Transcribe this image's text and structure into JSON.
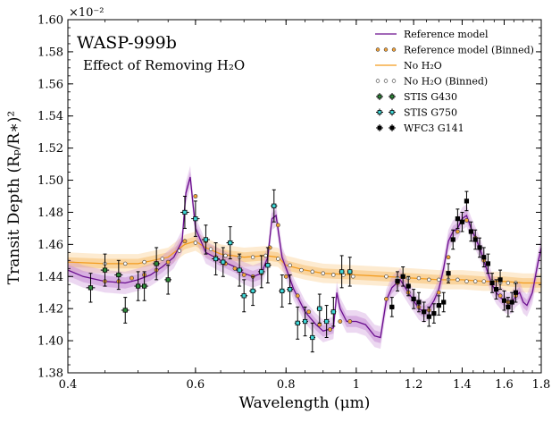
{
  "chart_data": {
    "type": "scatter",
    "title": "WASP-999b",
    "subtitle": "Effect of Removing H₂O",
    "xlabel": "Wavelength (μm)",
    "ylabel": "Transit Depth (Rₚ/R∗)²",
    "y_multiplier": "×10⁻²",
    "x_scale": "log",
    "xlim": [
      0.4,
      1.8
    ],
    "ylim": [
      1.38,
      1.6
    ],
    "x_ticks": [
      0.4,
      0.6,
      0.8,
      1.0,
      1.2,
      1.4,
      1.6,
      1.8
    ],
    "x_tick_labels": [
      "0.4",
      "0.6",
      "0.8",
      "1",
      "1.2",
      "1.4",
      "1.6",
      "1.8"
    ],
    "y_ticks": [
      1.38,
      1.4,
      1.42,
      1.44,
      1.46,
      1.48,
      1.5,
      1.52,
      1.54,
      1.56,
      1.58,
      1.6
    ],
    "y_tick_labels": [
      "1.38",
      "1.40",
      "1.42",
      "1.44",
      "1.46",
      "1.48",
      "1.50",
      "1.52",
      "1.54",
      "1.56",
      "1.58",
      "1.60"
    ],
    "legend_position": "top-right",
    "legend": [
      {
        "label": "Reference model",
        "kind": "line",
        "color": "#6a0f8e"
      },
      {
        "label": "Reference model (Binned)",
        "kind": "dot",
        "color": "#f2a33a"
      },
      {
        "label": "No H₂O",
        "kind": "line",
        "color": "#f39c1f"
      },
      {
        "label": "No H₂O (Binned)",
        "kind": "dot",
        "color": "#ffffff"
      },
      {
        "label": "STIS G430",
        "kind": "errorbar",
        "color": "#2e8b3a"
      },
      {
        "label": "STIS G750",
        "kind": "errorbar",
        "color": "#3fd6d6"
      },
      {
        "label": "WFC3 G141",
        "kind": "errorbar",
        "color": "#000000"
      }
    ],
    "series": [
      {
        "name": "Reference model",
        "color": "#6a0f8e",
        "band_color": "#c98fd6",
        "x": [
          0.4,
          0.42,
          0.45,
          0.48,
          0.5,
          0.52,
          0.54,
          0.56,
          0.575,
          0.582,
          0.59,
          0.6,
          0.62,
          0.65,
          0.68,
          0.7,
          0.72,
          0.74,
          0.755,
          0.765,
          0.775,
          0.79,
          0.82,
          0.85,
          0.88,
          0.9,
          0.93,
          0.94,
          0.95,
          0.97,
          1.0,
          1.03,
          1.06,
          1.08,
          1.1,
          1.12,
          1.15,
          1.18,
          1.2,
          1.22,
          1.24,
          1.26,
          1.28,
          1.3,
          1.32,
          1.34,
          1.36,
          1.38,
          1.4,
          1.42,
          1.44,
          1.46,
          1.48,
          1.5,
          1.52,
          1.54,
          1.56,
          1.58,
          1.6,
          1.62,
          1.64,
          1.66,
          1.68,
          1.7,
          1.72,
          1.75,
          1.78,
          1.8
        ],
        "y": [
          1.444,
          1.44,
          1.437,
          1.436,
          1.438,
          1.441,
          1.446,
          1.452,
          1.462,
          1.492,
          1.502,
          1.47,
          1.455,
          1.45,
          1.446,
          1.442,
          1.44,
          1.442,
          1.452,
          1.476,
          1.478,
          1.452,
          1.432,
          1.418,
          1.41,
          1.406,
          1.408,
          1.43,
          1.42,
          1.412,
          1.412,
          1.41,
          1.403,
          1.402,
          1.425,
          1.433,
          1.438,
          1.43,
          1.425,
          1.42,
          1.418,
          1.42,
          1.425,
          1.432,
          1.445,
          1.462,
          1.468,
          1.47,
          1.476,
          1.478,
          1.47,
          1.464,
          1.458,
          1.45,
          1.442,
          1.435,
          1.43,
          1.427,
          1.425,
          1.423,
          1.424,
          1.428,
          1.43,
          1.424,
          1.422,
          1.43,
          1.448,
          1.458
        ]
      },
      {
        "name": "No H₂O",
        "color": "#f39c1f",
        "band_color": "#f8c57a",
        "x": [
          0.4,
          0.45,
          0.5,
          0.55,
          0.58,
          0.6,
          0.62,
          0.65,
          0.7,
          0.75,
          0.78,
          0.8,
          0.85,
          0.9,
          1.0,
          1.1,
          1.2,
          1.3,
          1.4,
          1.5,
          1.6,
          1.7,
          1.8
        ],
        "y": [
          1.449,
          1.448,
          1.448,
          1.452,
          1.46,
          1.462,
          1.458,
          1.454,
          1.452,
          1.453,
          1.452,
          1.447,
          1.444,
          1.442,
          1.441,
          1.44,
          1.439,
          1.438,
          1.438,
          1.437,
          1.437,
          1.436,
          1.436
        ]
      },
      {
        "name": "Reference model (Binned)",
        "color": "#f2a33a",
        "x": [
          0.45,
          0.47,
          0.49,
          0.51,
          0.53,
          0.55,
          0.58,
          0.6,
          0.62,
          0.64,
          0.66,
          0.68,
          0.7,
          0.72,
          0.74,
          0.76,
          0.78,
          0.8,
          0.83,
          0.86,
          0.89,
          0.92,
          0.95,
          0.98,
          1.1,
          1.14,
          1.18,
          1.22,
          1.26,
          1.3,
          1.34,
          1.38,
          1.42,
          1.46,
          1.5,
          1.54,
          1.58,
          1.62,
          1.66
        ],
        "y": [
          1.437,
          1.437,
          1.439,
          1.441,
          1.444,
          1.449,
          1.462,
          1.49,
          1.462,
          1.452,
          1.448,
          1.445,
          1.441,
          1.44,
          1.442,
          1.458,
          1.472,
          1.44,
          1.428,
          1.418,
          1.41,
          1.407,
          1.412,
          1.412,
          1.426,
          1.436,
          1.43,
          1.421,
          1.419,
          1.43,
          1.452,
          1.468,
          1.475,
          1.464,
          1.45,
          1.436,
          1.428,
          1.424,
          1.428
        ]
      },
      {
        "name": "No H₂O (Binned)",
        "color": "#ffffff",
        "x": [
          0.45,
          0.48,
          0.51,
          0.54,
          0.57,
          0.6,
          0.63,
          0.66,
          0.69,
          0.72,
          0.75,
          0.78,
          0.81,
          0.84,
          0.87,
          0.9,
          0.93,
          0.96,
          0.99,
          1.1,
          1.14,
          1.18,
          1.22,
          1.26,
          1.3,
          1.34,
          1.38,
          1.42,
          1.46,
          1.5,
          1.54,
          1.58,
          1.62,
          1.66
        ],
        "y": [
          1.448,
          1.448,
          1.449,
          1.451,
          1.456,
          1.461,
          1.457,
          1.453,
          1.452,
          1.452,
          1.453,
          1.451,
          1.447,
          1.444,
          1.443,
          1.442,
          1.441,
          1.441,
          1.44,
          1.44,
          1.439,
          1.439,
          1.439,
          1.438,
          1.438,
          1.438,
          1.438,
          1.437,
          1.437,
          1.437,
          1.437,
          1.436,
          1.436,
          1.436
        ]
      },
      {
        "name": "STIS G430",
        "color": "#2e8b3a",
        "x": [
          0.43,
          0.45,
          0.47,
          0.48,
          0.5,
          0.51,
          0.53,
          0.55
        ],
        "y": [
          1.433,
          1.444,
          1.441,
          1.419,
          1.434,
          1.434,
          1.448,
          1.438
        ],
        "xerr": [
          0.006,
          0.006,
          0.006,
          0.006,
          0.006,
          0.006,
          0.006,
          0.006
        ],
        "yerr": [
          0.009,
          0.01,
          0.009,
          0.008,
          0.009,
          0.009,
          0.01,
          0.009
        ]
      },
      {
        "name": "STIS G750",
        "color": "#3fd6d6",
        "x": [
          0.58,
          0.6,
          0.62,
          0.64,
          0.655,
          0.67,
          0.69,
          0.7,
          0.72,
          0.74,
          0.755,
          0.77,
          0.79,
          0.81,
          0.83,
          0.85,
          0.87,
          0.89,
          0.91,
          0.93,
          0.955,
          0.98
        ],
        "y": [
          1.48,
          1.476,
          1.463,
          1.451,
          1.449,
          1.461,
          1.444,
          1.428,
          1.431,
          1.443,
          1.447,
          1.484,
          1.431,
          1.432,
          1.411,
          1.412,
          1.402,
          1.42,
          1.412,
          1.418,
          1.443,
          1.443
        ],
        "xerr": [
          0.008,
          0.008,
          0.008,
          0.008,
          0.008,
          0.008,
          0.008,
          0.008,
          0.008,
          0.008,
          0.008,
          0.008,
          0.008,
          0.008,
          0.008,
          0.008,
          0.008,
          0.008,
          0.008,
          0.008,
          0.008,
          0.008
        ],
        "yerr": [
          0.01,
          0.011,
          0.009,
          0.01,
          0.009,
          0.01,
          0.01,
          0.01,
          0.009,
          0.01,
          0.011,
          0.01,
          0.01,
          0.009,
          0.01,
          0.009,
          0.009,
          0.009,
          0.01,
          0.009,
          0.01,
          0.009
        ]
      },
      {
        "name": "WFC3 G141",
        "color": "#000000",
        "x": [
          1.12,
          1.14,
          1.16,
          1.18,
          1.2,
          1.22,
          1.24,
          1.26,
          1.28,
          1.3,
          1.32,
          1.34,
          1.36,
          1.38,
          1.4,
          1.42,
          1.44,
          1.46,
          1.48,
          1.5,
          1.52,
          1.54,
          1.56,
          1.58,
          1.6,
          1.62,
          1.64,
          1.66
        ],
        "y": [
          1.421,
          1.437,
          1.44,
          1.434,
          1.426,
          1.424,
          1.418,
          1.415,
          1.417,
          1.422,
          1.424,
          1.442,
          1.463,
          1.476,
          1.474,
          1.487,
          1.468,
          1.463,
          1.458,
          1.452,
          1.448,
          1.436,
          1.432,
          1.438,
          1.425,
          1.421,
          1.424,
          1.43
        ],
        "xerr": [
          0.009,
          0.009,
          0.009,
          0.009,
          0.009,
          0.009,
          0.009,
          0.009,
          0.009,
          0.009,
          0.009,
          0.009,
          0.009,
          0.009,
          0.009,
          0.009,
          0.009,
          0.009,
          0.009,
          0.009,
          0.009,
          0.009,
          0.009,
          0.009,
          0.009,
          0.009,
          0.009,
          0.009
        ],
        "yerr": [
          0.006,
          0.006,
          0.006,
          0.006,
          0.006,
          0.006,
          0.006,
          0.006,
          0.006,
          0.006,
          0.006,
          0.006,
          0.006,
          0.006,
          0.006,
          0.006,
          0.006,
          0.006,
          0.006,
          0.006,
          0.006,
          0.006,
          0.006,
          0.006,
          0.006,
          0.006,
          0.006,
          0.006
        ]
      }
    ]
  }
}
